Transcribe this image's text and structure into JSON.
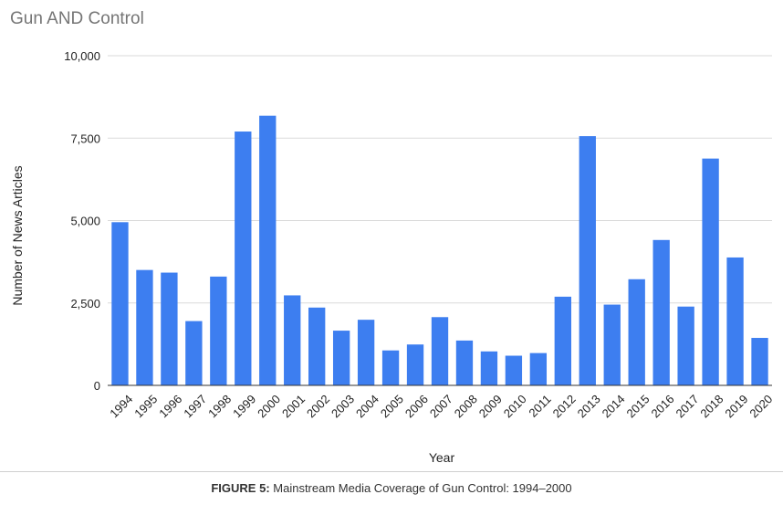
{
  "caption": {
    "label": "FIGURE 5:",
    "text": " Mainstream Media Coverage of Gun Control: 1994–2000"
  },
  "colors": {
    "bar": "#3d7ef0",
    "grid": "#dadada",
    "axis": "#333333"
  },
  "chart_data": {
    "type": "bar",
    "title": "Gun AND Control",
    "xlabel": "Year",
    "ylabel": "Number of News Articles",
    "ylim": [
      0,
      10000
    ],
    "yticks": [
      {
        "value": 0,
        "label": "0"
      },
      {
        "value": 2500,
        "label": "2,500"
      },
      {
        "value": 5000,
        "label": "5,000"
      },
      {
        "value": 7500,
        "label": "7,500"
      },
      {
        "value": 10000,
        "label": "10,000"
      }
    ],
    "grid": true,
    "categories": [
      "1994",
      "1995",
      "1996",
      "1997",
      "1998",
      "1999",
      "2000",
      "2001",
      "2002",
      "2003",
      "2004",
      "2005",
      "2006",
      "2007",
      "2008",
      "2009",
      "2010",
      "2011",
      "2012",
      "2013",
      "2014",
      "2015",
      "2016",
      "2017",
      "2018",
      "2019",
      "2020"
    ],
    "values": [
      4950,
      3500,
      3420,
      1950,
      3300,
      7700,
      8180,
      2730,
      2360,
      1660,
      1990,
      1060,
      1240,
      2070,
      1360,
      1030,
      900,
      980,
      2690,
      7560,
      2450,
      3220,
      4410,
      2390,
      6880,
      3880,
      1440
    ]
  }
}
